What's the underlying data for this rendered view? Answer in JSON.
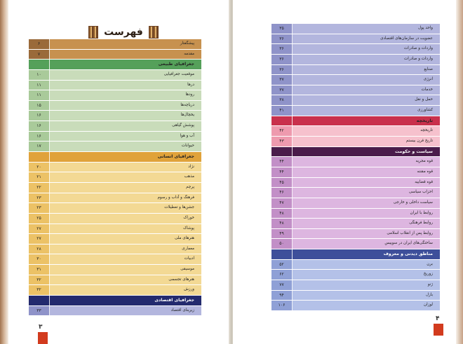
{
  "left_page": {
    "title": "فهرست",
    "page_number": "۳",
    "rows": [
      {
        "label": "پیشگفتار",
        "page": "۶",
        "kind": "intro"
      },
      {
        "label": "مقدمه",
        "page": "۷",
        "kind": "intro"
      },
      {
        "label": "جغرافیای طبیعی",
        "page": "",
        "kind": "header-green"
      },
      {
        "label": "موقعیت جغرافیایی",
        "page": "۱۰",
        "kind": "green"
      },
      {
        "label": "درها",
        "page": "۱۱",
        "kind": "green"
      },
      {
        "label": "رودها",
        "page": "۱۱",
        "kind": "green"
      },
      {
        "label": "دریاچه‌ها",
        "page": "۱۵",
        "kind": "green"
      },
      {
        "label": "یخچال‌ها",
        "page": "۱۶",
        "kind": "green"
      },
      {
        "label": "پوشش گیاهی",
        "page": "۱۶",
        "kind": "green"
      },
      {
        "label": "آب و هوا",
        "page": "۱۶",
        "kind": "green"
      },
      {
        "label": "حیوانات",
        "page": "۱۷",
        "kind": "green"
      },
      {
        "label": "جغرافیای انسانی",
        "page": "",
        "kind": "header-yellow"
      },
      {
        "label": "نژاد",
        "page": "۲۰",
        "kind": "yellow"
      },
      {
        "label": "مذهب",
        "page": "۲۱",
        "kind": "yellow"
      },
      {
        "label": "پرچم",
        "page": "۲۲",
        "kind": "yellow"
      },
      {
        "label": "فرهنگ و آداب و رسوم",
        "page": "۲۳",
        "kind": "yellow"
      },
      {
        "label": "جشن‌ها و تعطیلات",
        "page": "۲۳",
        "kind": "yellow"
      },
      {
        "label": "خوراک",
        "page": "۲۵",
        "kind": "yellow"
      },
      {
        "label": "پوشاک",
        "page": "۲۷",
        "kind": "yellow"
      },
      {
        "label": "هنرهای ملی",
        "page": "۲۷",
        "kind": "yellow"
      },
      {
        "label": "معماری",
        "page": "۲۸",
        "kind": "yellow"
      },
      {
        "label": "ادبیات",
        "page": "۳۰",
        "kind": "yellow"
      },
      {
        "label": "موسیقی",
        "page": "۳۱",
        "kind": "yellow"
      },
      {
        "label": "هنرهای تجسمی",
        "page": "۳۲",
        "kind": "yellow"
      },
      {
        "label": "ورزش",
        "page": "۳۲",
        "kind": "yellow"
      },
      {
        "label": "جغرافیای اقتصادی",
        "page": "",
        "kind": "header-navy"
      },
      {
        "label": "زیربنای اقتصاد",
        "page": "۳۳",
        "kind": "blue"
      }
    ]
  },
  "right_page": {
    "page_number": "۴",
    "rows": [
      {
        "label": "واحد پول",
        "page": "۳۵",
        "kind": "blue"
      },
      {
        "label": "عضویت در سازمان‌های اقتصادی",
        "page": "۳۶",
        "kind": "blue"
      },
      {
        "label": "واردات و صادرات",
        "page": "۳۶",
        "kind": "blue"
      },
      {
        "label": "واردات و صادرات",
        "page": "۳۶",
        "kind": "blue"
      },
      {
        "label": "صنایع",
        "page": "۳۶",
        "kind": "blue"
      },
      {
        "label": "انرژی",
        "page": "۳۷",
        "kind": "blue"
      },
      {
        "label": "خدمات",
        "page": "۳۷",
        "kind": "blue"
      },
      {
        "label": "حمل و نقل",
        "page": "۳۸",
        "kind": "blue"
      },
      {
        "label": "کشاورزی",
        "page": "۴۱",
        "kind": "blue"
      },
      {
        "label": "تاریخچه",
        "page": "",
        "kind": "header-red"
      },
      {
        "label": "تاریخچه",
        "page": "۴۲",
        "kind": "pink"
      },
      {
        "label": "تاریخ قرن بیستم",
        "page": "۴۳",
        "kind": "pink"
      },
      {
        "label": "سیاست و حکومت",
        "page": "",
        "kind": "header-purple"
      },
      {
        "label": "قوه مجریه",
        "page": "۴۴",
        "kind": "lilac"
      },
      {
        "label": "قوه مقننه",
        "page": "۴۴",
        "kind": "lilac"
      },
      {
        "label": "قوه قضاییه",
        "page": "۴۵",
        "kind": "lilac"
      },
      {
        "label": "احزاب سیاسی",
        "page": "۴۶",
        "kind": "lilac"
      },
      {
        "label": "سیاست داخلی و خارجی",
        "page": "۴۷",
        "kind": "lilac"
      },
      {
        "label": "روابط با ایران",
        "page": "۴۸",
        "kind": "lilac"
      },
      {
        "label": "روابط فرهنگی",
        "page": "۴۸",
        "kind": "lilac"
      },
      {
        "label": "روابط پس از انقلاب اسلامی",
        "page": "۴۹",
        "kind": "lilac"
      },
      {
        "label": "ساختگی‌های ایران در سوییس",
        "page": "۵۰",
        "kind": "lilac"
      },
      {
        "label": "مناطق دیدنی و معروف",
        "page": "",
        "kind": "header-blue"
      },
      {
        "label": "برن",
        "page": "۵۲",
        "kind": "periwinkle"
      },
      {
        "label": "زوریخ",
        "page": "۶۲",
        "kind": "periwinkle"
      },
      {
        "label": "ژنو",
        "page": "۷۷",
        "kind": "periwinkle"
      },
      {
        "label": "بازل",
        "page": "۹۴",
        "kind": "periwinkle"
      },
      {
        "label": "لوزان",
        "page": "۱۰۶",
        "kind": "periwinkle"
      }
    ]
  },
  "colors": {
    "intro": [
      "#9a6a3a",
      "#c7914f"
    ],
    "header-green": [
      "#55a05a",
      "#74b46c"
    ],
    "green": [
      "#a9ca9a",
      "#c9dcba"
    ],
    "header-yellow": [
      "#e0a23a",
      "#f1c262"
    ],
    "yellow": [
      "#ecc266",
      "#f3d994"
    ],
    "header-navy": [
      "#232a6e",
      "#2e3a86"
    ],
    "blue": [
      "#8f93c9",
      "#b3b6de"
    ],
    "header-red": [
      "#c9304c",
      "#e04561"
    ],
    "pink": [
      "#ee9aae",
      "#f6c1cd"
    ],
    "header-purple": [
      "#4a1c4a",
      "#5c2a5c"
    ],
    "lilac": [
      "#c28fc7",
      "#ddb6e0"
    ],
    "header-blue": [
      "#3e4f9a",
      "#5262ad"
    ],
    "periwinkle": [
      "#8fa0d6",
      "#b4c1e8"
    ]
  }
}
